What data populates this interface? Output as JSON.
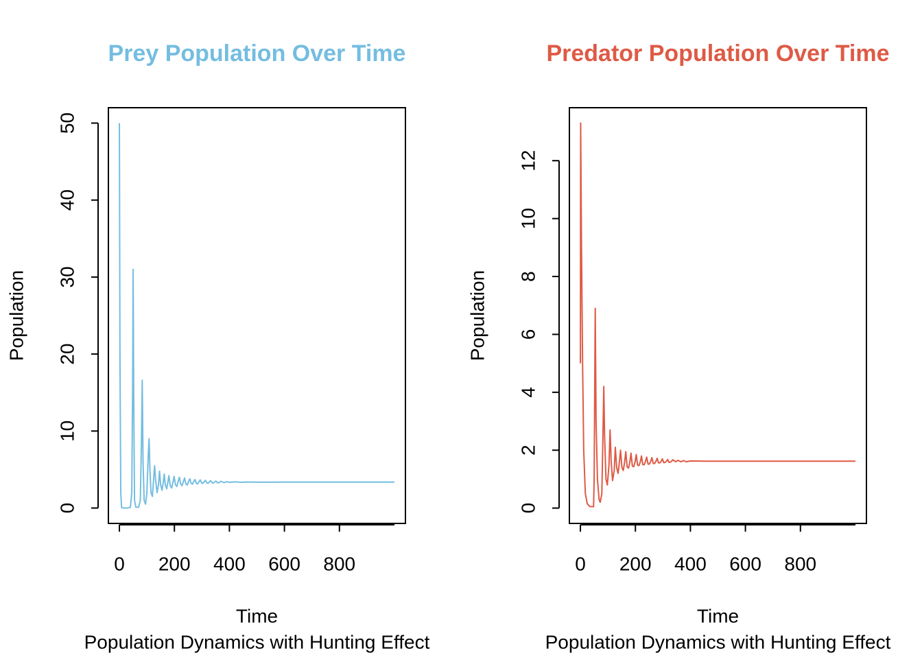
{
  "chart_data": [
    {
      "type": "line",
      "title": "Prey Population Over Time",
      "xlabel": "Time",
      "ylabel": "Population",
      "subtitle": "Population Dynamics with Hunting Effect",
      "color": "#74bde0",
      "x": [
        0,
        2,
        5,
        8,
        15,
        30,
        40,
        45,
        48,
        50,
        52,
        55,
        60,
        70,
        76,
        80,
        83,
        86,
        90,
        95,
        100,
        105,
        108,
        111,
        115,
        120,
        124,
        128,
        132,
        137,
        142,
        146,
        150,
        155,
        159,
        163,
        167,
        172,
        176,
        180,
        185,
        190,
        195,
        199,
        204,
        209,
        214,
        218,
        223,
        228,
        233,
        237,
        242,
        247,
        252,
        256,
        261,
        266,
        271,
        275,
        280,
        285,
        290,
        294,
        299,
        304,
        309,
        313,
        318,
        323,
        328,
        332,
        337,
        342,
        347,
        351,
        356,
        361,
        366,
        370,
        380,
        390,
        400,
        420,
        440,
        460,
        500,
        600,
        700,
        800,
        900,
        1000
      ],
      "values": [
        50,
        20,
        2,
        0.05,
        0,
        0,
        0.1,
        2,
        15,
        31,
        15,
        1,
        0.1,
        0.1,
        1,
        8,
        16.6,
        6,
        1,
        0.5,
        2,
        7,
        9,
        5,
        2,
        1.5,
        3.5,
        5.5,
        3.5,
        2,
        3,
        4.8,
        3,
        2.3,
        3.2,
        4.4,
        3,
        2.5,
        3.3,
        4.2,
        2.9,
        2.6,
        3.4,
        4.1,
        3,
        2.8,
        3.5,
        4,
        3.1,
        2.9,
        3.5,
        3.9,
        3.1,
        3,
        3.5,
        3.8,
        3.2,
        3.1,
        3.5,
        3.7,
        3.2,
        3.15,
        3.45,
        3.65,
        3.25,
        3.2,
        3.45,
        3.6,
        3.25,
        3.22,
        3.44,
        3.55,
        3.28,
        3.25,
        3.42,
        3.5,
        3.3,
        3.28,
        3.4,
        3.47,
        3.3,
        3.42,
        3.34,
        3.4,
        3.35,
        3.38,
        3.36,
        3.37,
        3.37,
        3.37,
        3.37,
        3.37
      ],
      "xlim": [
        -40,
        1040
      ],
      "xticks": [
        0,
        200,
        400,
        600,
        800
      ],
      "ylim": [
        -2,
        52
      ],
      "yticks": [
        0,
        10,
        20,
        30,
        40,
        50
      ]
    },
    {
      "type": "line",
      "title": "Predator Population Over Time",
      "xlabel": "Time",
      "ylabel": "Population",
      "subtitle": "Population Dynamics with Hunting Effect",
      "color": "#de5a45",
      "x": [
        0,
        1,
        4,
        8,
        12,
        18,
        25,
        35,
        48,
        50,
        52,
        54,
        57,
        62,
        68,
        72,
        78,
        82,
        85,
        88,
        93,
        98,
        104,
        108,
        112,
        117,
        123,
        127,
        132,
        137,
        142,
        146,
        151,
        156,
        161,
        165,
        170,
        175,
        180,
        184,
        189,
        194,
        199,
        203,
        208,
        213,
        218,
        222,
        227,
        232,
        237,
        241,
        246,
        251,
        256,
        260,
        265,
        270,
        275,
        279,
        284,
        289,
        294,
        298,
        303,
        308,
        313,
        317,
        322,
        327,
        332,
        336,
        346,
        355,
        365,
        375,
        385,
        400,
        450,
        500,
        600,
        700,
        800,
        900,
        1000
      ],
      "values": [
        5,
        13.3,
        9,
        5,
        2,
        0.5,
        0.15,
        0.05,
        0.05,
        1,
        4,
        6.9,
        3,
        1,
        0.3,
        0.2,
        0.5,
        2.5,
        4.2,
        2.5,
        1,
        0.8,
        1.5,
        2.7,
        1.6,
        0.95,
        1.3,
        2.1,
        1.4,
        1.2,
        1.6,
        2,
        1.4,
        1.3,
        1.6,
        1.95,
        1.42,
        1.38,
        1.6,
        1.9,
        1.45,
        1.43,
        1.6,
        1.85,
        1.48,
        1.47,
        1.6,
        1.8,
        1.5,
        1.5,
        1.62,
        1.76,
        1.52,
        1.52,
        1.62,
        1.74,
        1.54,
        1.54,
        1.62,
        1.72,
        1.56,
        1.56,
        1.62,
        1.7,
        1.57,
        1.58,
        1.62,
        1.68,
        1.58,
        1.59,
        1.62,
        1.67,
        1.6,
        1.65,
        1.6,
        1.64,
        1.6,
        1.63,
        1.62,
        1.62,
        1.62,
        1.62,
        1.62,
        1.62,
        1.62
      ],
      "xlim": [
        -40,
        1040
      ],
      "xticks": [
        0,
        200,
        400,
        600,
        800
      ],
      "ylim": [
        -0.53,
        13.83
      ],
      "yticks": [
        0,
        2,
        4,
        6,
        8,
        10,
        12
      ]
    }
  ]
}
